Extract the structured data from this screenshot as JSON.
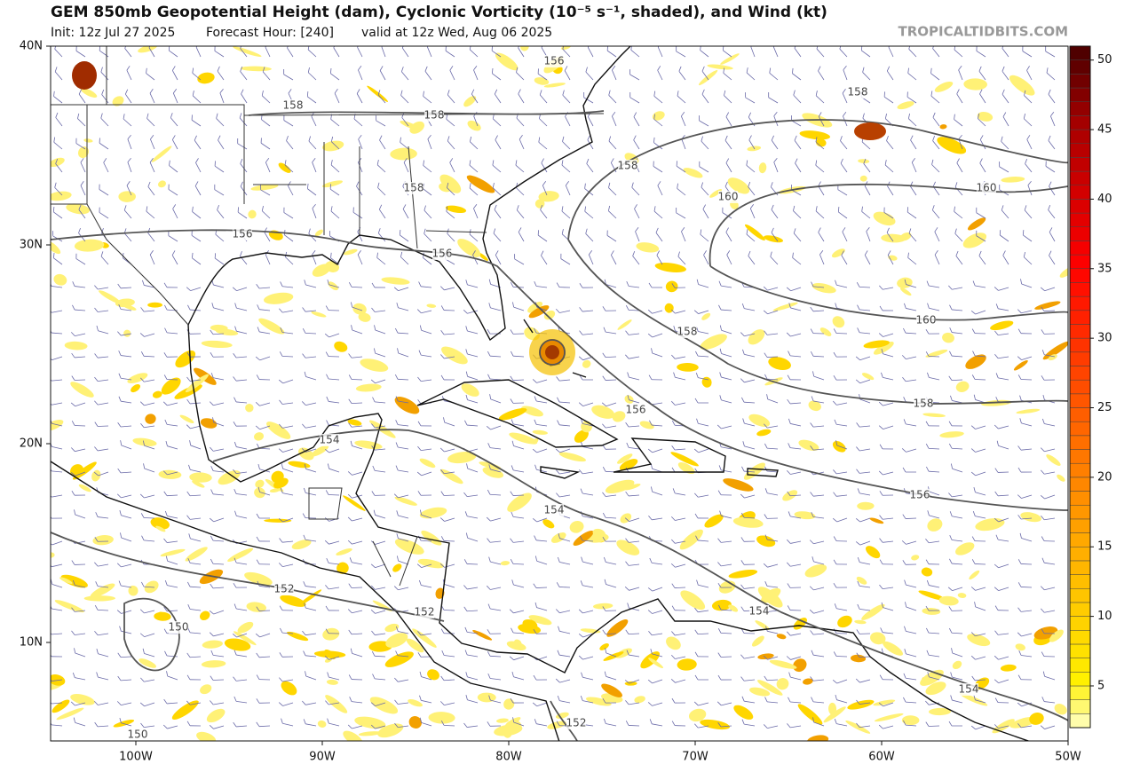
{
  "header": {
    "title": "GEM 850mb Geopotential Height (dam), Cyclonic Vorticity (10⁻⁵ s⁻¹, shaded), and Wind (kt)",
    "init": "Init: 12z Jul 27 2025",
    "forecast_hour": "Forecast Hour: [240]",
    "valid": "valid at 12z Wed, Aug 06 2025",
    "brand": "TROPICALTIDBITS.COM"
  },
  "map": {
    "lat_labels": [
      "40N",
      "30N",
      "20N",
      "10N"
    ],
    "lon_labels": [
      "100W",
      "90W",
      "80W",
      "70W",
      "60W",
      "50W"
    ],
    "contour_labels": [
      "156",
      "158",
      "158",
      "158",
      "158",
      "158",
      "160",
      "160",
      "156",
      "156",
      "160",
      "158",
      "156",
      "158",
      "154",
      "154",
      "156",
      "152",
      "152",
      "154",
      "150",
      "154",
      "152",
      "150"
    ]
  },
  "colorbar": {
    "range": [
      2,
      51
    ],
    "ticks": [
      5,
      10,
      15,
      20,
      25,
      30,
      35,
      40,
      45,
      50
    ]
  }
}
